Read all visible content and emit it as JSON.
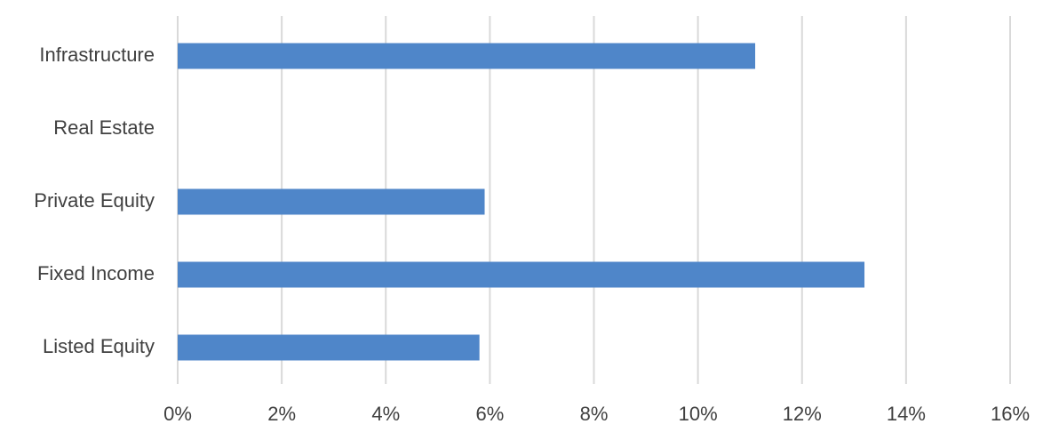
{
  "chart_data": {
    "type": "bar",
    "orientation": "horizontal",
    "categories": [
      "Infrastructure",
      "Real Estate",
      "Private Equity",
      "Fixed Income",
      "Listed Equity"
    ],
    "values": [
      11.1,
      0,
      5.9,
      13.2,
      5.8
    ],
    "color": "#4f86c9",
    "xlim": [
      0,
      16
    ],
    "xticks": [
      {
        "value": 0,
        "label": "0%"
      },
      {
        "value": 2,
        "label": "2%"
      },
      {
        "value": 4,
        "label": "4%"
      },
      {
        "value": 6,
        "label": "6%"
      },
      {
        "value": 8,
        "label": "8%"
      },
      {
        "value": 10,
        "label": "10%"
      },
      {
        "value": 12,
        "label": "12%"
      },
      {
        "value": 14,
        "label": "14%"
      },
      {
        "value": 16,
        "label": "16%"
      }
    ],
    "grid": true
  }
}
